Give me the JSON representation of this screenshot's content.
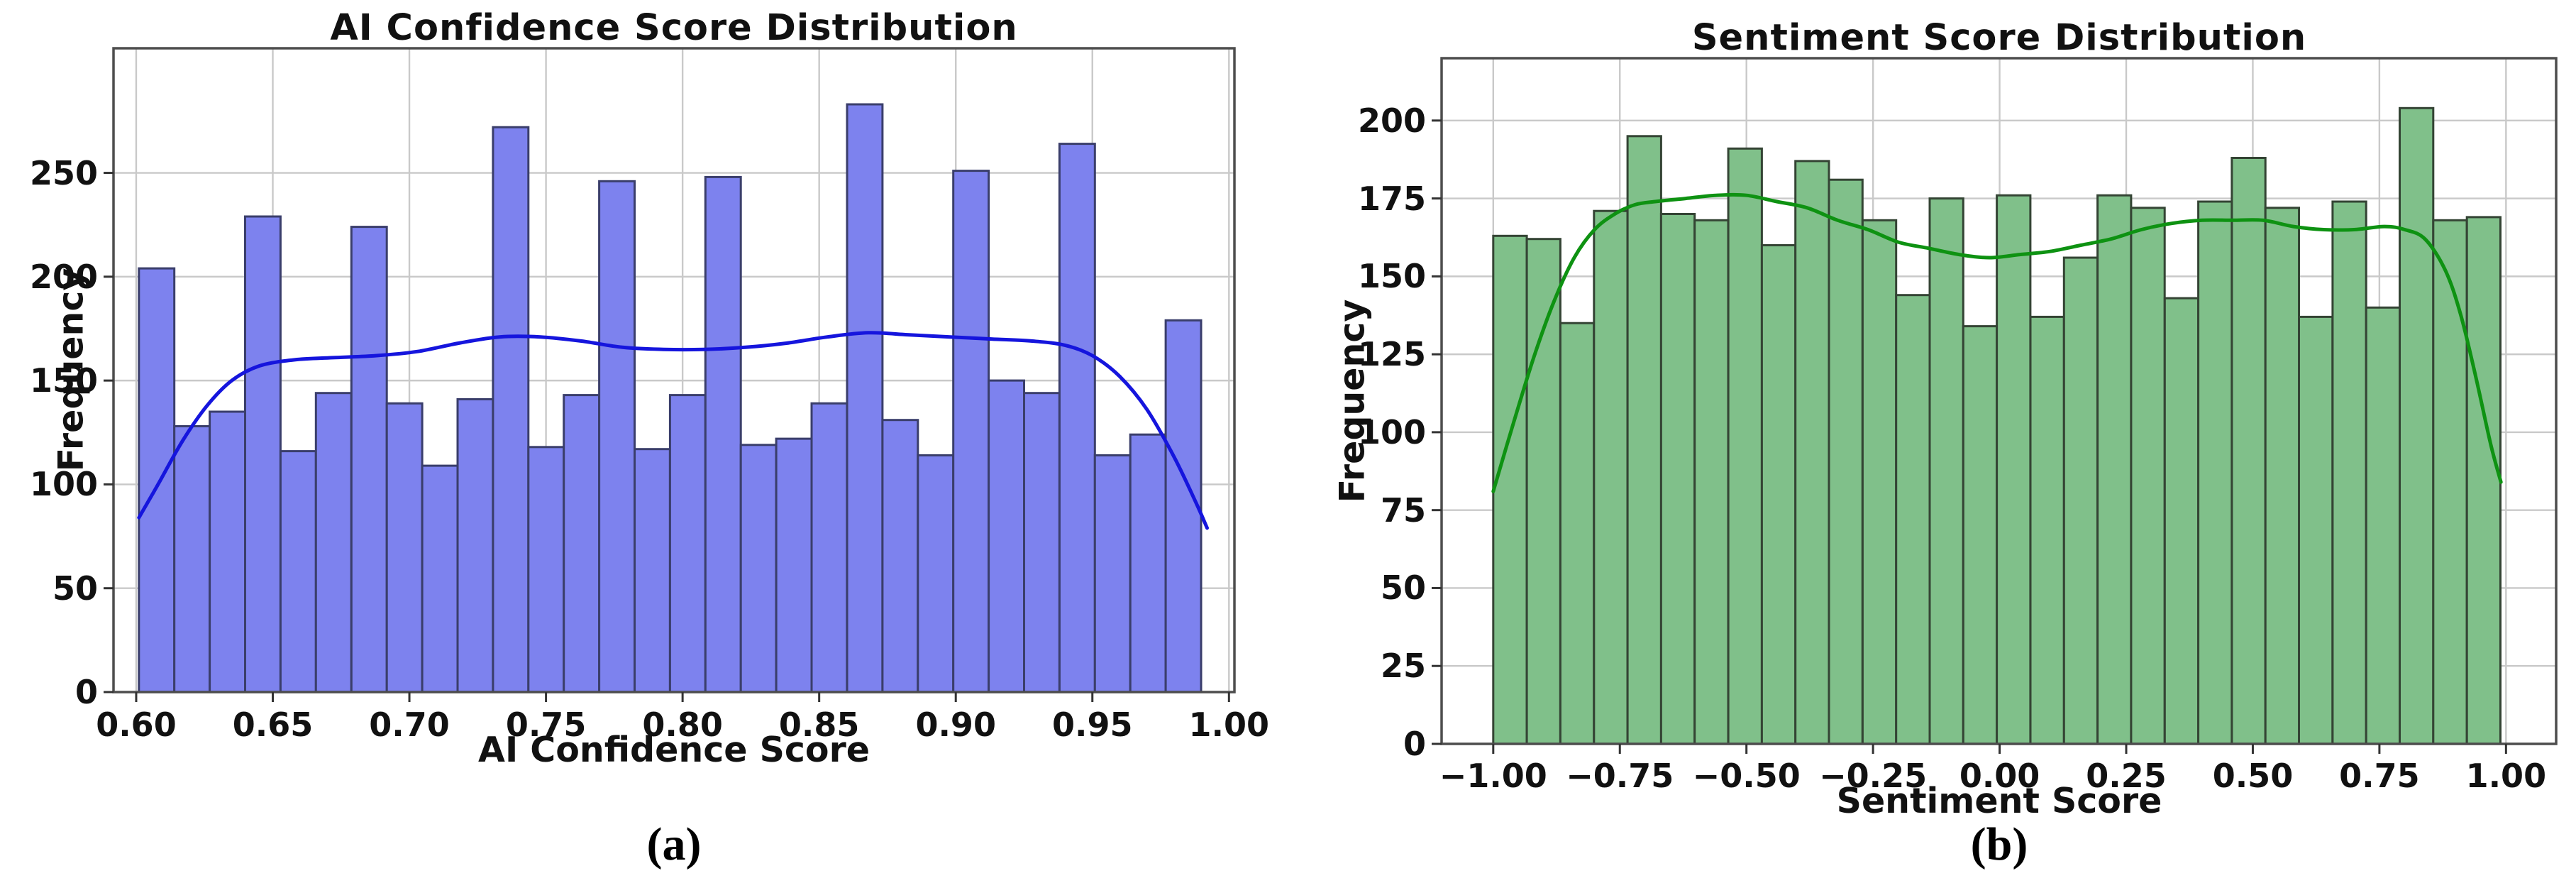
{
  "figure": {
    "background": "#ffffff",
    "grid_color": "#c9c9c9",
    "frame_color": "#4d4d4d",
    "text_color": "#111111",
    "captions": {
      "a": "(a)",
      "b": "(b)"
    }
  },
  "chart_data": [
    {
      "type": "bar",
      "subtype": "histogram_with_kde",
      "panel_label": "(a)",
      "title": "AI Confidence Score Distribution",
      "xlabel": "AI Confidence Score",
      "ylabel": "Frequency",
      "legend_position": "none",
      "grid": true,
      "bar_fill": "#7d82ee",
      "bar_edge": "#3a3e6b",
      "kde_color": "#1515dd",
      "xlim": [
        0.5917,
        1.002
      ],
      "ylim": [
        0,
        310
      ],
      "x_tick_values": [
        0.6,
        0.65,
        0.7,
        0.75,
        0.8,
        0.85,
        0.9,
        0.95,
        1.0
      ],
      "x_tick_labels": [
        "0.60",
        "0.65",
        "0.70",
        "0.75",
        "0.80",
        "0.85",
        "0.90",
        "0.95",
        "1.00"
      ],
      "y_tick_values": [
        0,
        50,
        100,
        150,
        200,
        250
      ],
      "y_tick_labels": [
        "0",
        "50",
        "100",
        "150",
        "200",
        "250"
      ],
      "bin_start": 0.601,
      "bin_width": 0.01296,
      "values": [
        204,
        128,
        135,
        229,
        116,
        144,
        224,
        139,
        109,
        141,
        272,
        118,
        143,
        246,
        117,
        143,
        248,
        119,
        122,
        139,
        283,
        131,
        114,
        251,
        150,
        144,
        264,
        114,
        124,
        179
      ],
      "kde_points": [
        [
          0.601,
          84
        ],
        [
          0.608,
          100
        ],
        [
          0.617,
          121
        ],
        [
          0.626,
          138
        ],
        [
          0.635,
          150
        ],
        [
          0.645,
          157
        ],
        [
          0.658,
          160
        ],
        [
          0.672,
          161
        ],
        [
          0.688,
          162
        ],
        [
          0.703,
          164
        ],
        [
          0.718,
          168
        ],
        [
          0.733,
          171
        ],
        [
          0.748,
          171
        ],
        [
          0.763,
          169
        ],
        [
          0.778,
          166
        ],
        [
          0.793,
          165
        ],
        [
          0.808,
          165
        ],
        [
          0.823,
          166
        ],
        [
          0.838,
          168
        ],
        [
          0.853,
          171
        ],
        [
          0.868,
          173
        ],
        [
          0.883,
          172
        ],
        [
          0.898,
          171
        ],
        [
          0.913,
          170
        ],
        [
          0.928,
          169
        ],
        [
          0.94,
          167
        ],
        [
          0.95,
          162
        ],
        [
          0.96,
          152
        ],
        [
          0.97,
          136
        ],
        [
          0.98,
          113
        ],
        [
          0.988,
          91
        ],
        [
          0.992,
          79
        ]
      ]
    },
    {
      "type": "bar",
      "subtype": "histogram_with_kde",
      "panel_label": "(b)",
      "title": "Sentiment Score Distribution",
      "xlabel": "Sentiment Score",
      "ylabel": "Frequency",
      "legend_position": "none",
      "grid": true,
      "bar_fill": "#80c08a",
      "bar_edge": "#344434",
      "kde_color": "#0e9212",
      "xlim": [
        -1.102,
        1.099
      ],
      "ylim": [
        0,
        220
      ],
      "x_tick_values": [
        -1.0,
        -0.75,
        -0.5,
        -0.25,
        0.0,
        0.25,
        0.5,
        0.75,
        1.0
      ],
      "x_tick_labels": [
        "−1.00",
        "−0.75",
        "−0.50",
        "−0.25",
        "0.00",
        "0.25",
        "0.50",
        "0.75",
        "1.00"
      ],
      "y_tick_values": [
        0,
        25,
        50,
        75,
        100,
        125,
        150,
        175,
        200
      ],
      "y_tick_labels": [
        "0",
        "25",
        "50",
        "75",
        "100",
        "125",
        "150",
        "175",
        "200"
      ],
      "bin_start": -1.0,
      "bin_width": 0.0663,
      "values": [
        163,
        162,
        135,
        171,
        195,
        170,
        168,
        191,
        160,
        187,
        181,
        168,
        144,
        175,
        134,
        176,
        137,
        156,
        176,
        172,
        143,
        174,
        188,
        172,
        137,
        174,
        140,
        204,
        168,
        169
      ],
      "kde_points": [
        [
          -1.0,
          81
        ],
        [
          -0.96,
          103
        ],
        [
          -0.92,
          124
        ],
        [
          -0.88,
          142
        ],
        [
          -0.84,
          156
        ],
        [
          -0.8,
          165
        ],
        [
          -0.76,
          170
        ],
        [
          -0.72,
          173
        ],
        [
          -0.68,
          174
        ],
        [
          -0.62,
          175
        ],
        [
          -0.56,
          176
        ],
        [
          -0.5,
          176
        ],
        [
          -0.44,
          174
        ],
        [
          -0.38,
          172
        ],
        [
          -0.32,
          168
        ],
        [
          -0.26,
          165
        ],
        [
          -0.2,
          161
        ],
        [
          -0.14,
          159
        ],
        [
          -0.08,
          157
        ],
        [
          -0.02,
          156
        ],
        [
          0.04,
          157
        ],
        [
          0.1,
          158
        ],
        [
          0.16,
          160
        ],
        [
          0.22,
          162
        ],
        [
          0.28,
          165
        ],
        [
          0.34,
          167
        ],
        [
          0.4,
          168
        ],
        [
          0.46,
          168
        ],
        [
          0.52,
          168
        ],
        [
          0.58,
          166
        ],
        [
          0.64,
          165
        ],
        [
          0.7,
          165
        ],
        [
          0.76,
          166
        ],
        [
          0.8,
          165
        ],
        [
          0.84,
          162
        ],
        [
          0.88,
          152
        ],
        [
          0.91,
          138
        ],
        [
          0.94,
          118
        ],
        [
          0.97,
          96
        ],
        [
          0.99,
          84
        ]
      ]
    }
  ]
}
